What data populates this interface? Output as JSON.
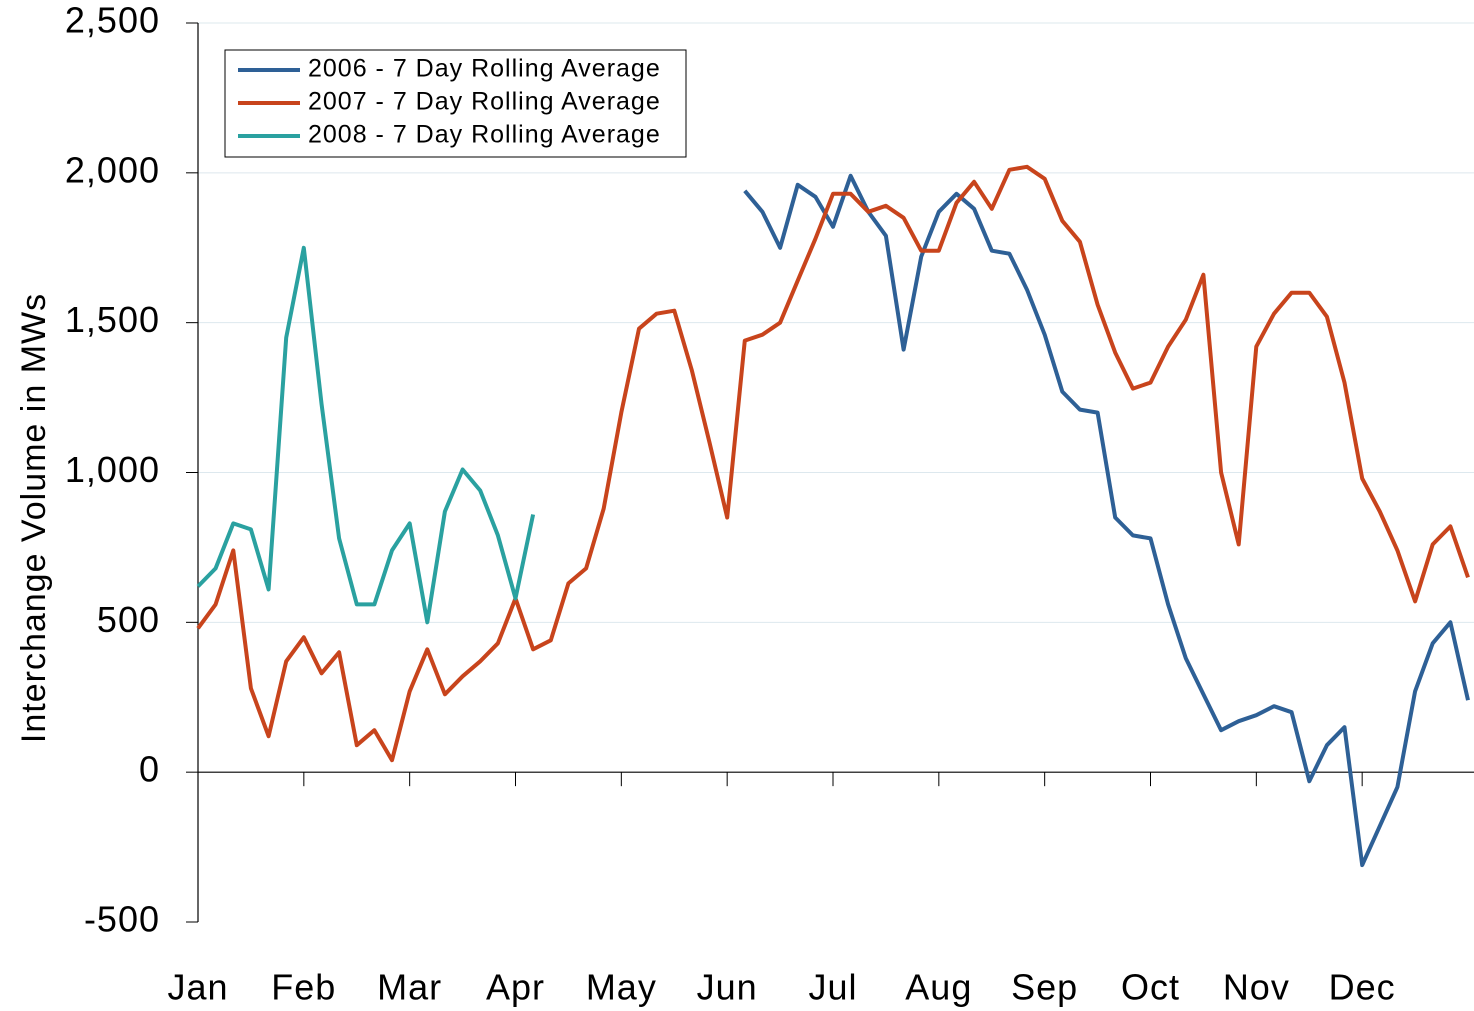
{
  "chart_data": {
    "type": "line",
    "y_label": "Interchange Volume in MWs",
    "categories": [
      "Jan",
      null,
      null,
      null,
      null,
      null,
      "Feb",
      null,
      null,
      null,
      null,
      null,
      "Mar",
      null,
      null,
      null,
      null,
      null,
      "Apr",
      null,
      null,
      null,
      null,
      null,
      "May",
      null,
      null,
      null,
      null,
      null,
      "Jun",
      null,
      null,
      null,
      null,
      null,
      "Jul",
      null,
      null,
      null,
      null,
      null,
      "Aug",
      null,
      null,
      null,
      null,
      null,
      "Sep",
      null,
      null,
      null,
      null,
      null,
      "Oct",
      null,
      null,
      null,
      null,
      null,
      "Nov",
      null,
      null,
      null,
      null,
      null,
      "Dec",
      null,
      null,
      null,
      null,
      null,
      null
    ],
    "series": [
      {
        "name": "2006 - 7 Day Rolling Average",
        "color": "#2e6096",
        "values": [
          null,
          null,
          null,
          null,
          null,
          null,
          null,
          null,
          null,
          null,
          null,
          null,
          null,
          null,
          null,
          null,
          null,
          null,
          null,
          null,
          null,
          null,
          null,
          null,
          null,
          null,
          null,
          null,
          null,
          null,
          null,
          1940,
          1870,
          1750,
          1960,
          1920,
          1820,
          1990,
          1870,
          1790,
          1410,
          1720,
          1870,
          1930,
          1880,
          1740,
          1730,
          1610,
          1460,
          1270,
          1210,
          1200,
          850,
          790,
          780,
          560,
          380,
          260,
          140,
          170,
          190,
          220,
          200,
          -30,
          90,
          150,
          -310,
          -180,
          -50,
          270,
          430,
          500,
          240
        ]
      },
      {
        "name": "2007 - 7 Day Rolling Average",
        "color": "#c8441c",
        "values": [
          480,
          560,
          740,
          280,
          120,
          370,
          450,
          330,
          400,
          90,
          140,
          40,
          270,
          410,
          260,
          320,
          370,
          430,
          580,
          410,
          440,
          630,
          680,
          880,
          1200,
          1480,
          1530,
          1540,
          1340,
          1100,
          850,
          1440,
          1460,
          1500,
          1640,
          1780,
          1930,
          1930,
          1870,
          1890,
          1850,
          1740,
          1740,
          1900,
          1970,
          1880,
          2010,
          2020,
          1980,
          1840,
          1770,
          1560,
          1400,
          1280,
          1300,
          1420,
          1510,
          1660,
          1000,
          760,
          1420,
          1530,
          1600,
          1600,
          1520,
          1300,
          980,
          870,
          740,
          570,
          760,
          820,
          650
        ]
      },
      {
        "name": "2008 - 7 Day Rolling Average",
        "color": "#2aa1a0",
        "values": [
          620,
          680,
          830,
          810,
          610,
          1450,
          1750,
          1230,
          780,
          560,
          560,
          740,
          830,
          500,
          870,
          1010,
          940,
          790,
          580,
          860,
          null,
          null,
          null,
          null,
          null,
          null,
          null,
          null,
          null,
          null,
          null,
          null,
          null,
          null,
          null,
          null,
          null,
          null,
          null,
          null,
          null,
          null,
          null,
          null,
          null,
          null,
          null,
          null,
          null,
          null,
          null,
          null,
          null,
          null,
          null,
          null,
          null,
          null,
          null,
          null,
          null,
          null,
          null,
          null,
          null,
          null,
          null,
          null,
          null,
          null,
          null,
          null,
          null
        ]
      }
    ],
    "ylim": [
      -500,
      2500
    ],
    "yticks": [
      -500,
      0,
      500,
      {
        "value": 1000,
        "label": "1,000"
      },
      {
        "value": 1500,
        "label": "1,500"
      },
      {
        "value": 2000,
        "label": "2,000"
      },
      {
        "value": 2500,
        "label": "2,500"
      }
    ],
    "grid": true,
    "legend": "upper left"
  }
}
